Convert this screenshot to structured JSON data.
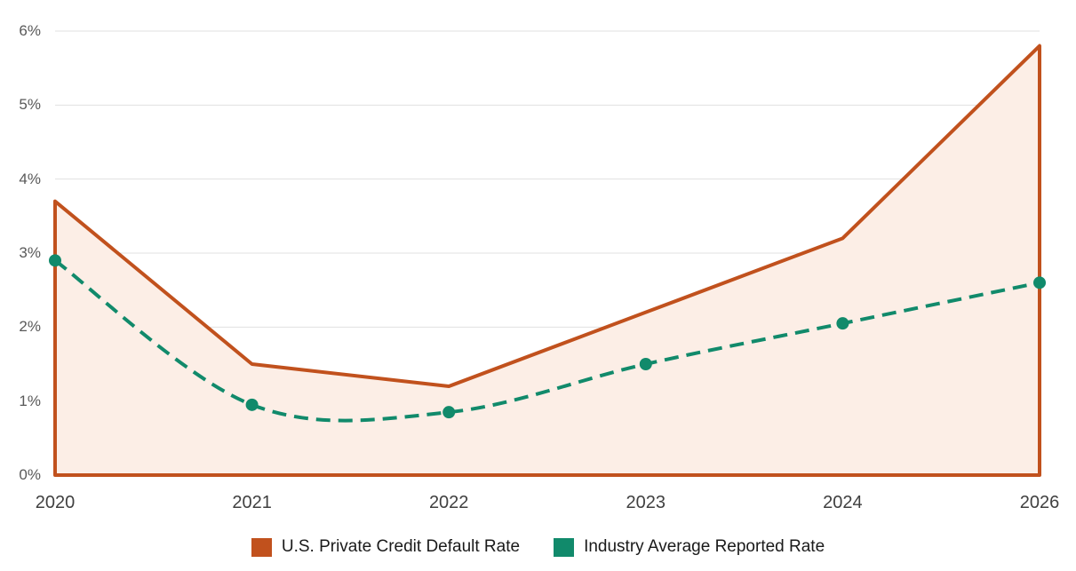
{
  "chart_data": {
    "type": "area",
    "categories": [
      "2020",
      "2021",
      "2022",
      "2023",
      "2024",
      "2026"
    ],
    "series": [
      {
        "name": "U.S. Private Credit Default Rate",
        "type": "area",
        "line_style": "solid",
        "smooth": false,
        "markers": false,
        "color": "#C1511D",
        "fill": "#FCEEE6",
        "values": [
          3.7,
          1.5,
          1.2,
          2.2,
          3.2,
          5.8
        ]
      },
      {
        "name": "Industry Average Reported Rate",
        "type": "line",
        "line_style": "dashed",
        "smooth": true,
        "markers": true,
        "color": "#118A6B",
        "values": [
          2.9,
          0.95,
          0.85,
          1.5,
          2.05,
          2.6
        ]
      }
    ],
    "yticks": [
      "0%",
      "1%",
      "2%",
      "3%",
      "4%",
      "5%",
      "6%"
    ],
    "ylim": [
      0,
      6
    ],
    "xlabel": "",
    "ylabel": "",
    "title": "",
    "grid": "horizontal",
    "legend_position": "bottom",
    "colors": {
      "grid": "#E0E0E0",
      "y_tick_text": "#595959",
      "x_tick_text": "#404040",
      "legend_text": "#1A1A1A",
      "background": "#FFFFFF"
    }
  }
}
